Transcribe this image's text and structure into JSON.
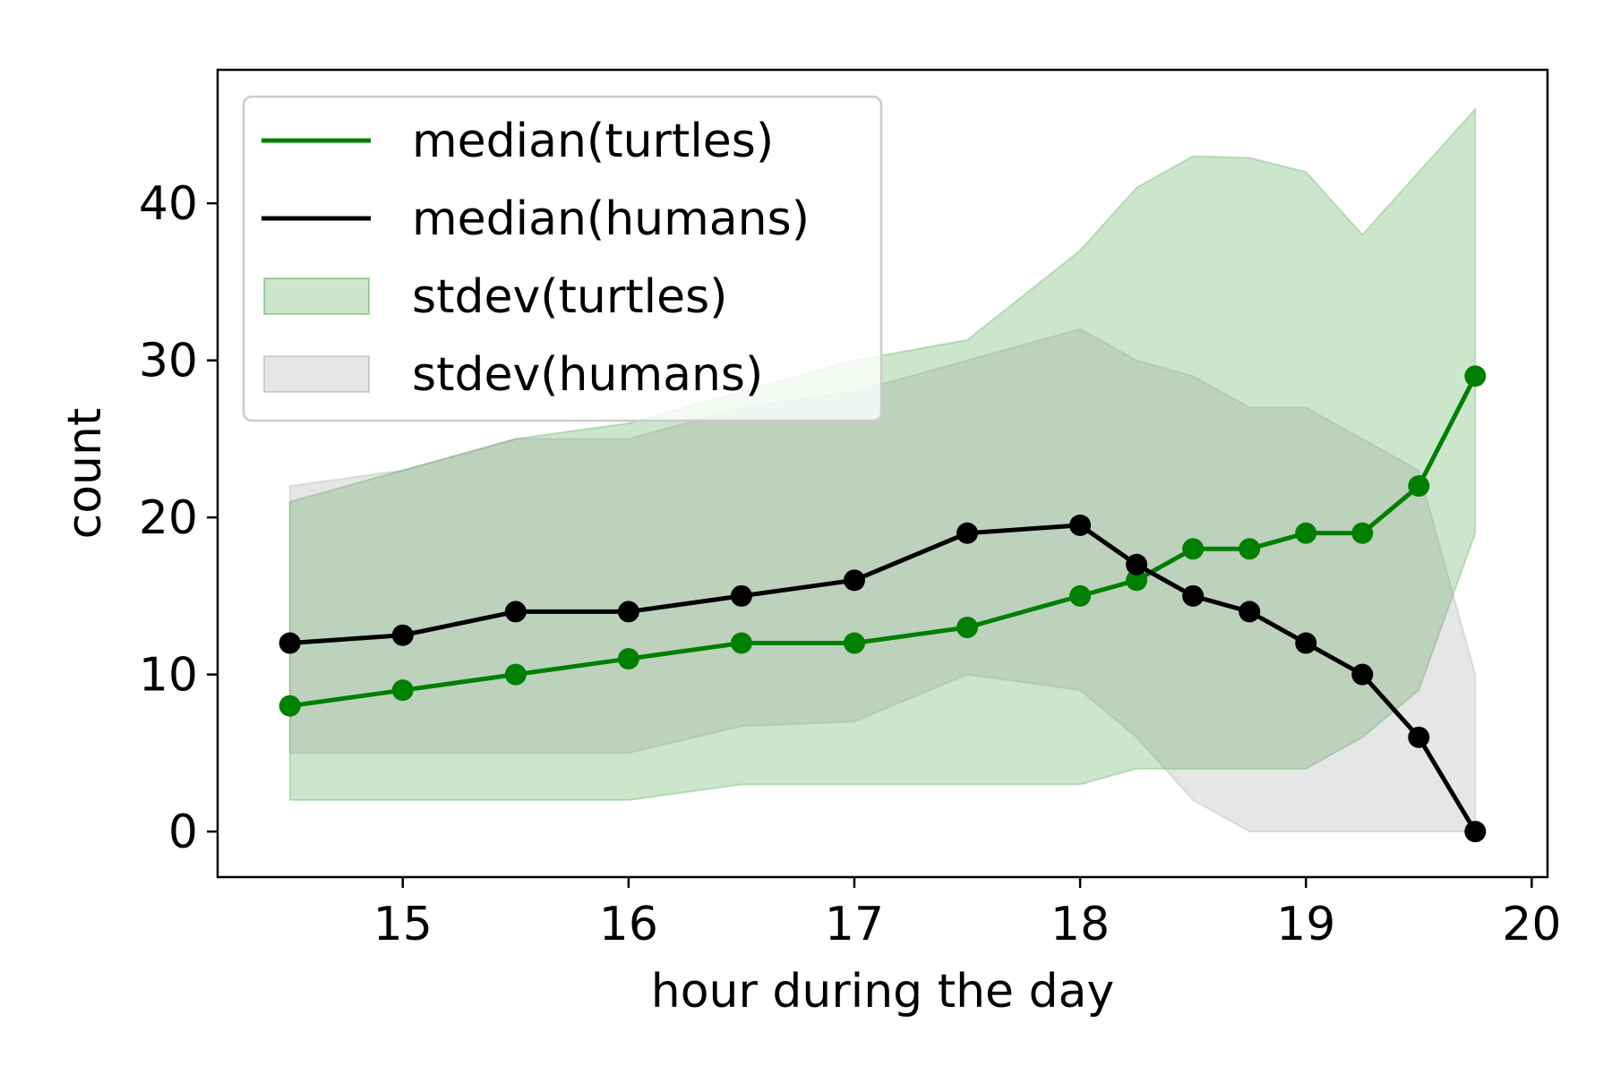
{
  "chart_data": {
    "type": "line",
    "xlabel": "hour during the day",
    "ylabel": "count",
    "xlim": [
      14.18,
      20.07
    ],
    "ylim": [
      -2.9,
      48.5
    ],
    "xticks": [
      15,
      16,
      17,
      18,
      19,
      20
    ],
    "yticks": [
      0,
      10,
      20,
      30,
      40
    ],
    "grid": false,
    "legend_position": "upper-left",
    "x": [
      14.5,
      15,
      15.5,
      16,
      16.5,
      17,
      17.5,
      18,
      18.25,
      18.5,
      18.75,
      19,
      19.25,
      19.5,
      19.75
    ],
    "series": [
      {
        "name": "median(turtles)",
        "kind": "line",
        "color": "#008000",
        "values": [
          8,
          9,
          10,
          11,
          12,
          12,
          13,
          15,
          16,
          18,
          18,
          19,
          19,
          22,
          29
        ]
      },
      {
        "name": "median(humans)",
        "kind": "line",
        "color": "#000000",
        "values": [
          12,
          12.5,
          14,
          14,
          15,
          16,
          19,
          19.5,
          17,
          15,
          14,
          12,
          10,
          6,
          0
        ]
      },
      {
        "name": "stdev(turtles)",
        "kind": "band",
        "color": "#008000",
        "lower": [
          2,
          2,
          2,
          2,
          3,
          3,
          3,
          3,
          4,
          4,
          4,
          4,
          6,
          9,
          19
        ],
        "upper": [
          21,
          23,
          25,
          26,
          28,
          30,
          31.3,
          37,
          41,
          43,
          42.9,
          42,
          38,
          42,
          46
        ]
      },
      {
        "name": "stdev(humans)",
        "kind": "band",
        "color": "#808080",
        "lower": [
          5,
          5,
          5,
          5,
          6.7,
          7,
          10,
          9,
          6,
          2,
          0,
          0,
          0,
          0,
          0
        ],
        "upper": [
          22,
          23,
          25,
          25,
          27,
          28,
          30,
          32,
          30,
          29,
          27,
          27,
          25,
          23,
          10
        ]
      }
    ],
    "legend": [
      {
        "label": "median(turtles)",
        "kind": "line",
        "color": "#008000"
      },
      {
        "label": "median(humans)",
        "kind": "line",
        "color": "#000000"
      },
      {
        "label": "stdev(turtles)",
        "kind": "patch",
        "color": "#008000"
      },
      {
        "label": "stdev(humans)",
        "kind": "patch",
        "color": "#808080"
      }
    ]
  }
}
